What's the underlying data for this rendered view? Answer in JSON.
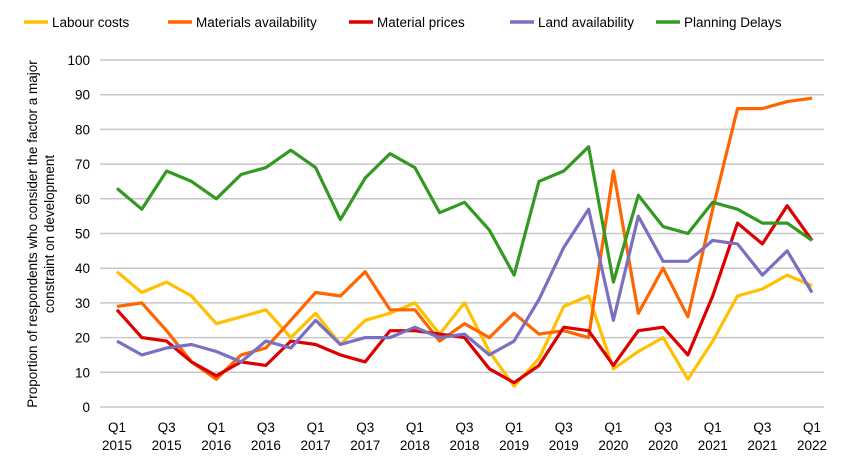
{
  "chart_data": {
    "type": "line",
    "title": "",
    "xlabel": "",
    "ylabel": "Proportion of respondents who consider the factor a major constraint on development",
    "ylim": [
      0,
      100
    ],
    "yticks": [
      0,
      10,
      20,
      30,
      40,
      50,
      60,
      70,
      80,
      90,
      100
    ],
    "grid": true,
    "legend_position": "top",
    "x": [
      "Q1 2015",
      "Q2 2015",
      "Q3 2015",
      "Q4 2015",
      "Q1 2016",
      "Q2 2016",
      "Q3 2016",
      "Q4 2016",
      "Q1 2017",
      "Q2 2017",
      "Q3 2017",
      "Q4 2017",
      "Q1 2018",
      "Q2 2018",
      "Q3 2018",
      "Q4 2018",
      "Q1 2019",
      "Q2 2019",
      "Q3 2019",
      "Q4 2019",
      "Q1 2020",
      "Q2 2020",
      "Q3 2020",
      "Q4 2020",
      "Q1 2021",
      "Q2 2021",
      "Q3 2021",
      "Q4 2021",
      "Q1 2022"
    ],
    "xtick_labels": [
      {
        "q": "Q1",
        "y": "2015"
      },
      {
        "q": "Q3",
        "y": "2015"
      },
      {
        "q": "Q1",
        "y": "2016"
      },
      {
        "q": "Q3",
        "y": "2016"
      },
      {
        "q": "Q1",
        "y": "2017"
      },
      {
        "q": "Q3",
        "y": "2017"
      },
      {
        "q": "Q1",
        "y": "2018"
      },
      {
        "q": "Q3",
        "y": "2018"
      },
      {
        "q": "Q1",
        "y": "2019"
      },
      {
        "q": "Q3",
        "y": "2019"
      },
      {
        "q": "Q1",
        "y": "2020"
      },
      {
        "q": "Q3",
        "y": "2020"
      },
      {
        "q": "Q1",
        "y": "2021"
      },
      {
        "q": "Q3",
        "y": "2021"
      },
      {
        "q": "Q1",
        "y": "2022"
      }
    ],
    "series": [
      {
        "name": "Labour costs",
        "color": "#FFC000",
        "values": [
          39,
          33,
          36,
          32,
          24,
          26,
          28,
          20,
          27,
          18,
          25,
          27,
          30,
          21,
          30,
          16,
          6,
          14,
          29,
          32,
          11,
          16,
          20,
          8,
          19,
          32,
          34,
          38,
          35
        ]
      },
      {
        "name": "Materials availability",
        "color": "#FF6600",
        "values": [
          29,
          30,
          22,
          13,
          8,
          15,
          17,
          25,
          33,
          32,
          39,
          28,
          28,
          19,
          24,
          20,
          27,
          21,
          22,
          20,
          68,
          27,
          40,
          26,
          57,
          86,
          86,
          88,
          89
        ]
      },
      {
        "name": "Material prices",
        "color": "#DD0000",
        "values": [
          28,
          20,
          19,
          13,
          9,
          13,
          12,
          19,
          18,
          15,
          13,
          22,
          22,
          21,
          20,
          11,
          7,
          12,
          23,
          22,
          12,
          22,
          23,
          15,
          32,
          53,
          47,
          58,
          48
        ]
      },
      {
        "name": "Land availability",
        "color": "#7B6FBF",
        "values": [
          19,
          15,
          17,
          18,
          16,
          13,
          19,
          17,
          25,
          18,
          20,
          20,
          23,
          20,
          21,
          15,
          19,
          31,
          46,
          57,
          25,
          55,
          42,
          42,
          48,
          47,
          38,
          45,
          33
        ]
      },
      {
        "name": "Planning Delays",
        "color": "#339922",
        "values": [
          63,
          57,
          68,
          65,
          60,
          67,
          69,
          74,
          69,
          54,
          66,
          73,
          69,
          56,
          59,
          51,
          38,
          65,
          68,
          75,
          36,
          61,
          52,
          50,
          59,
          57,
          53,
          53,
          48
        ]
      }
    ]
  }
}
